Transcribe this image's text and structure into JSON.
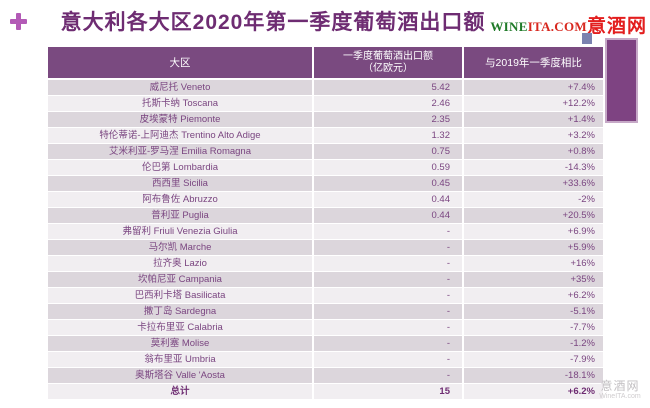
{
  "header": {
    "title": "意大利各大区2020年第一季度葡萄酒出口额",
    "plus_icon": "+",
    "logo": {
      "wine": "WINE",
      "ita_com": "ITA.COM",
      "cn": "意酒网"
    }
  },
  "watermark": {
    "site_cn": "意酒网",
    "site_en": "WineITA.com"
  },
  "colors": {
    "title_text": "#6e2c72",
    "header_bg": "#7a4a80",
    "row_odd_bg": "#dcd6dc",
    "row_even_bg": "#f1eef1",
    "cell_text": "#7a4580",
    "accent_bar": "#7e4382",
    "accent_square": "#7b82b0",
    "plus_icon": "#b35ab6",
    "logo_green": "#1f7a28",
    "logo_red": "#d8281f",
    "watermark_gray": "#c2bfc2"
  },
  "chart_data": {
    "type": "table",
    "title": "意大利各大区2020年第一季度葡萄酒出口额",
    "columns": {
      "region": "大区",
      "export_line1": "一季度葡萄酒出口额",
      "export_line2": "（亿欧元）",
      "change": "与2019年一季度相比"
    },
    "rows": [
      {
        "region": "威尼托  Veneto",
        "value": "5.42",
        "change": "+7.4%"
      },
      {
        "region": "托斯卡纳  Toscana",
        "value": "2.46",
        "change": "+12.2%"
      },
      {
        "region": "皮埃蒙特  Piemonte",
        "value": "2.35",
        "change": "+1.4%"
      },
      {
        "region": "特伦蒂诺-上阿迪杰  Trentino Alto Adige",
        "value": "1.32",
        "change": "+3.2%"
      },
      {
        "region": "艾米利亚-罗马涅  Emilia Romagna",
        "value": "0.75",
        "change": "+0.8%"
      },
      {
        "region": "伦巴第  Lombardia",
        "value": "0.59",
        "change": "-14.3%"
      },
      {
        "region": "西西里  Sicilia",
        "value": "0.45",
        "change": "+33.6%"
      },
      {
        "region": "阿布鲁佐  Abruzzo",
        "value": "0.44",
        "change": "-2%"
      },
      {
        "region": "普利亚  Puglia",
        "value": "0.44",
        "change": "+20.5%"
      },
      {
        "region": "弗留利  Friuli Venezia Giulia",
        "value": "-",
        "change": "+6.9%"
      },
      {
        "region": "马尔凯  Marche",
        "value": "-",
        "change": "+5.9%"
      },
      {
        "region": "拉齐奥 Lazio",
        "value": "-",
        "change": "+16%"
      },
      {
        "region": "坎帕尼亚  Campania",
        "value": "-",
        "change": "+35%"
      },
      {
        "region": "巴西利卡塔  Basilicata",
        "value": "-",
        "change": "+6.2%"
      },
      {
        "region": "撒丁岛  Sardegna",
        "value": "-",
        "change": "-5.1%"
      },
      {
        "region": "卡拉布里亚  Calabria",
        "value": "-",
        "change": "-7.7%"
      },
      {
        "region": "莫利塞  Molise",
        "value": "-",
        "change": "-1.2%"
      },
      {
        "region": "翁布里亚  Umbria",
        "value": "-",
        "change": "-7.9%"
      },
      {
        "region": "奥斯塔谷  Valle 'Aosta",
        "value": "-",
        "change": "-18.1%"
      }
    ],
    "total": {
      "region": "总计",
      "value": "15",
      "change": "+6.2%"
    }
  }
}
